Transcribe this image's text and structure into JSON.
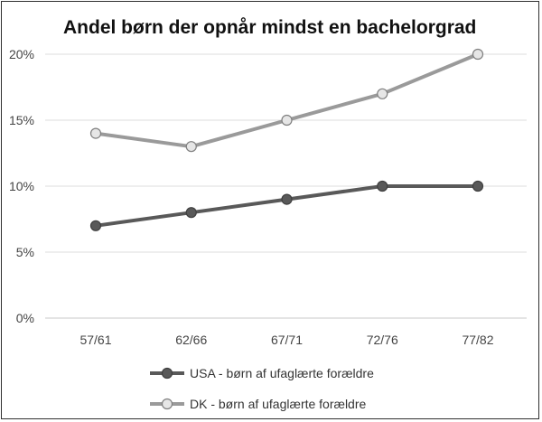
{
  "chart_data": {
    "type": "line",
    "title": "Andel børn der opnår mindst en bachelorgrad",
    "categories": [
      "57/61",
      "62/66",
      "67/71",
      "72/76",
      "77/82"
    ],
    "y_ticks": [
      "0%",
      "5%",
      "10%",
      "15%",
      "20%"
    ],
    "ylim": [
      0,
      20
    ],
    "grid": true,
    "legend_placement": "bottom",
    "series": [
      {
        "name": "USA - børn af ufaglærte forældre",
        "values": [
          7,
          8,
          9,
          10,
          10
        ],
        "line_color": "#595959",
        "marker_fill": "#595959"
      },
      {
        "name": "DK - børn af ufaglærte forældre",
        "values": [
          14,
          13,
          15,
          17,
          20
        ],
        "line_color": "#9a9a9a",
        "marker_fill": "#e6e6e6"
      }
    ]
  }
}
